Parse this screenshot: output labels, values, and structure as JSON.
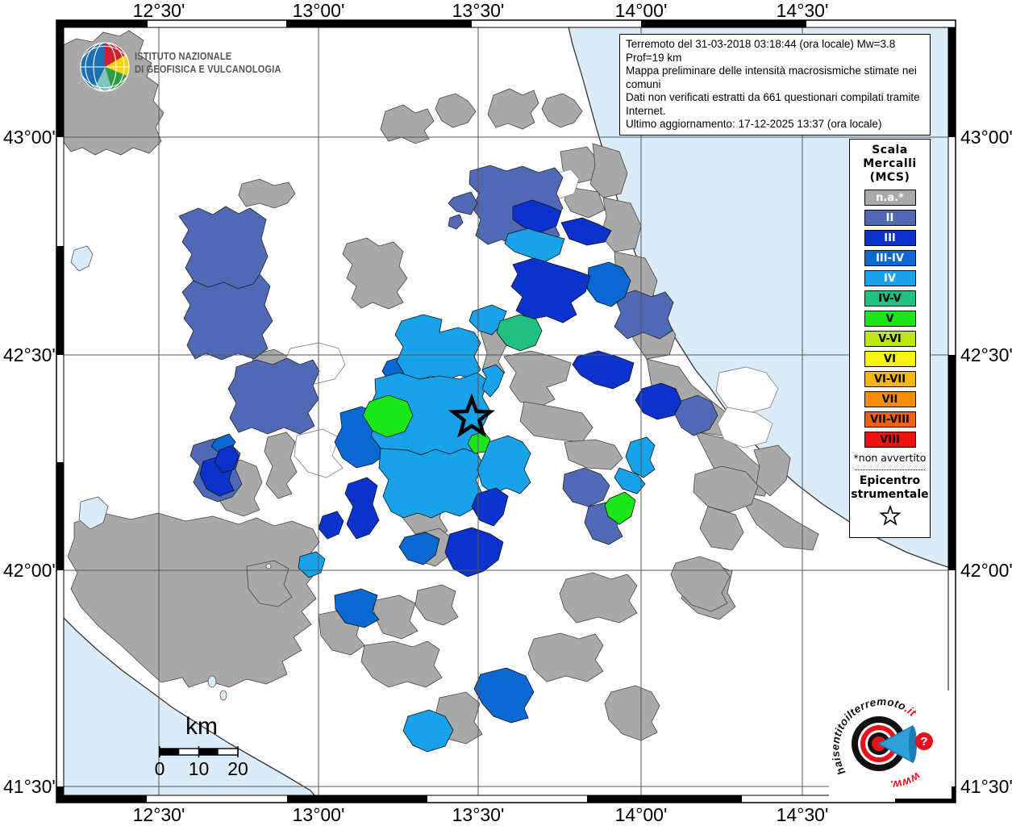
{
  "header": {
    "ingv_line1": "ISTITUTO NAZIONALE",
    "ingv_line2": "DI GEOFISICA E VULCANOLOGIA"
  },
  "info_box": {
    "line1": "Terremoto del 31-03-2018 03:18:44 (ora locale) Mw=3.8 Prof=19 km",
    "line2": "Mappa preliminare delle intensità macrosismiche stimate nei comuni",
    "line3": "Dati non verificati estratti da 661 questionari compilati tramite Internet.",
    "line4": "Ultimo aggiornamento: 17-12-2025 13:37 (ora locale)"
  },
  "legend": {
    "title_lines": [
      "Scala",
      "Mercalli",
      "(MCS)"
    ],
    "items": [
      {
        "label": "n.a.*",
        "color": "#a9a9a9",
        "text": "#ffffff"
      },
      {
        "label": "II",
        "color": "#4f69b5",
        "text": "#ffffff"
      },
      {
        "label": "III",
        "color": "#0b32cc",
        "text": "#ffffff"
      },
      {
        "label": "III-IV",
        "color": "#0968d2",
        "text": "#ffffff"
      },
      {
        "label": "IV",
        "color": "#18a2e8",
        "text": "#ffffff"
      },
      {
        "label": "IV-V",
        "color": "#1fc080",
        "text": "#000000"
      },
      {
        "label": "V",
        "color": "#1ae61a",
        "text": "#000000"
      },
      {
        "label": "V-VI",
        "color": "#bce614",
        "text": "#000000"
      },
      {
        "label": "VI",
        "color": "#f7f50f",
        "text": "#000000"
      },
      {
        "label": "VI-VII",
        "color": "#f6b50f",
        "text": "#000000"
      },
      {
        "label": "VII",
        "color": "#f78c0a",
        "text": "#000000"
      },
      {
        "label": "VII-VIII",
        "color": "#ef620f",
        "text": "#000000"
      },
      {
        "label": "VIII",
        "color": "#f21111",
        "text": "#000000"
      }
    ],
    "footnote": "*non avvertito",
    "epicenter_line1": "Epicentro",
    "epicenter_line2": "strumentale"
  },
  "axes": {
    "lon_labels": [
      "12°30'",
      "13°00'",
      "13°30'",
      "14°00'",
      "14°30'"
    ],
    "lat_labels": [
      "43°00'",
      "42°30'",
      "42°00'",
      "41°30'"
    ]
  },
  "scale_bar": {
    "unit": "km",
    "ticks": [
      "0",
      "10",
      "20"
    ]
  },
  "branding": {
    "site_text": "haisentitoilterremoto",
    "site_tld": ".it",
    "www": "www.",
    "question_mark": "?"
  },
  "map": {
    "sea_color": "#d9ecf8"
  }
}
